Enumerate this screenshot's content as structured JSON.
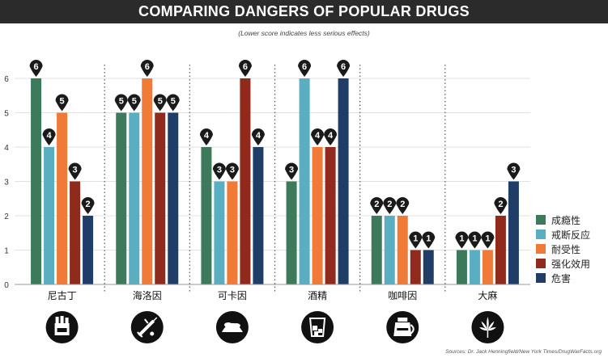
{
  "header": {
    "title": "COMPARING DANGERS OF POPULAR DRUGS",
    "subtitle": "(Lower score indicates less serious effects)"
  },
  "footer": {
    "source": "Sources: Dr. Jack Henningfield/New York Times/DrugWarFacts.org"
  },
  "chart_data": {
    "type": "bar",
    "categories": [
      "尼古丁",
      "海洛因",
      "可卡因",
      "酒精",
      "咖啡因",
      "大麻"
    ],
    "series": [
      {
        "name": "成瘾性",
        "color": "#3d7a5c",
        "values": [
          6,
          5,
          4,
          3,
          2,
          1
        ]
      },
      {
        "name": "戒断反应",
        "color": "#5aaec1",
        "values": [
          4,
          5,
          3,
          6,
          2,
          1
        ]
      },
      {
        "name": "耐受性",
        "color": "#f07a38",
        "values": [
          5,
          6,
          3,
          4,
          2,
          1
        ]
      },
      {
        "name": "强化效用",
        "color": "#8f2a1c",
        "values": [
          3,
          5,
          6,
          4,
          1,
          2
        ]
      },
      {
        "name": "危害",
        "color": "#1f3d66",
        "values": [
          2,
          5,
          4,
          6,
          1,
          3
        ]
      }
    ],
    "ylim": [
      0,
      6
    ],
    "yticks": [
      0,
      1,
      2,
      3,
      4,
      5,
      6
    ],
    "grid": true,
    "legend": "right"
  },
  "icons": [
    "cigarette-pack-icon",
    "syringe-icon",
    "powder-pile-icon",
    "glass-with-ice-icon",
    "coffee-pot-icon",
    "cannabis-leaf-icon"
  ]
}
